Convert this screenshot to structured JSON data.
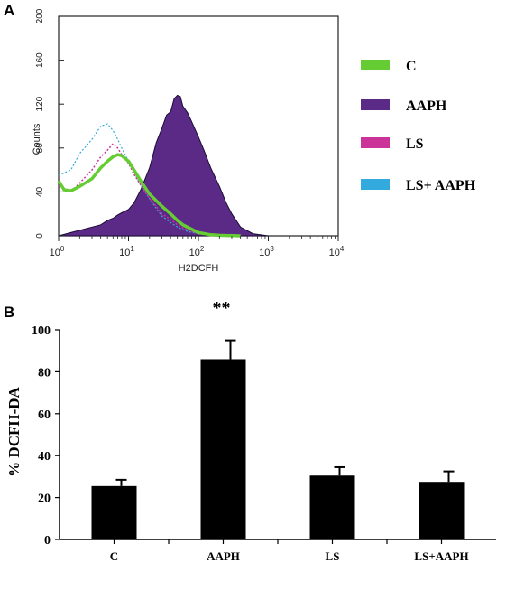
{
  "panel_a": {
    "label": "A"
  },
  "panel_b": {
    "label": "B"
  },
  "chart_data": [
    {
      "type": "line",
      "panel": "A",
      "xlabel": "H2DCFH",
      "ylabel": "Counts",
      "x_scale": "log",
      "xlim": [
        1,
        10000
      ],
      "ylim": [
        0,
        200
      ],
      "x_ticks": [
        {
          "base": "10",
          "exp": "0"
        },
        {
          "base": "10",
          "exp": "1"
        },
        {
          "base": "10",
          "exp": "2"
        },
        {
          "base": "10",
          "exp": "3"
        },
        {
          "base": "10",
          "exp": "4"
        }
      ],
      "y_ticks": [
        "0",
        "40",
        "80",
        "120",
        "160",
        "200"
      ],
      "legend_position": "right",
      "series": [
        {
          "name": "C",
          "color": "#66cc33",
          "x": [
            1,
            1.2,
            1.5,
            2,
            3,
            4,
            5,
            6,
            7,
            8,
            10,
            12,
            15,
            20,
            25,
            30,
            40,
            50,
            60,
            80,
            100,
            150,
            200,
            400
          ],
          "y": [
            50,
            42,
            41,
            45,
            52,
            62,
            68,
            72,
            74,
            73,
            68,
            60,
            50,
            38,
            32,
            27,
            20,
            14,
            10,
            6,
            3,
            1,
            0.5,
            0
          ]
        },
        {
          "name": "AAPH",
          "color": "#5b2a86",
          "x": [
            1,
            1.5,
            2,
            3,
            4,
            5,
            6,
            7,
            8,
            10,
            12,
            15,
            20,
            25,
            30,
            35,
            40,
            45,
            50,
            55,
            60,
            70,
            80,
            100,
            120,
            150,
            200,
            250,
            300,
            400,
            600,
            1000
          ],
          "y": [
            0,
            3,
            5,
            8,
            10,
            14,
            16,
            19,
            21,
            24,
            30,
            42,
            62,
            85,
            98,
            110,
            113,
            125,
            128,
            127,
            118,
            112,
            104,
            90,
            78,
            62,
            45,
            30,
            20,
            8,
            2,
            0
          ]
        },
        {
          "name": "LS",
          "color": "#cc3399",
          "x": [
            1,
            1.5,
            2,
            3,
            4,
            5,
            6,
            7,
            8,
            10,
            12,
            15,
            20,
            25,
            30,
            40,
            50,
            70,
            100,
            200
          ],
          "y": [
            45,
            40,
            48,
            60,
            72,
            78,
            84,
            80,
            74,
            66,
            56,
            46,
            34,
            27,
            20,
            15,
            10,
            5,
            2,
            0
          ]
        },
        {
          "name": "LS+ AAPH",
          "color": "#33aadd",
          "x": [
            1,
            1.5,
            2,
            3,
            4,
            5,
            6,
            7,
            8,
            10,
            12,
            15,
            20,
            25,
            30,
            40,
            50,
            70,
            100,
            200
          ],
          "y": [
            55,
            60,
            75,
            88,
            100,
            102,
            96,
            88,
            80,
            68,
            58,
            46,
            34,
            25,
            18,
            12,
            8,
            4,
            2,
            0
          ]
        }
      ]
    },
    {
      "type": "bar",
      "panel": "B",
      "categories": [
        "C",
        "AAPH",
        "LS",
        "LS+AAPH"
      ],
      "values": [
        25.5,
        86,
        30.5,
        27.5
      ],
      "errors": [
        3,
        9,
        4,
        5
      ],
      "annotations": [
        {
          "category": "AAPH",
          "text": "**"
        }
      ],
      "ylabel": "% DCFH-DA",
      "ylim": [
        0,
        100
      ],
      "y_ticks": [
        "0",
        "20",
        "40",
        "60",
        "80",
        "100"
      ],
      "bar_color": "#000000"
    }
  ]
}
